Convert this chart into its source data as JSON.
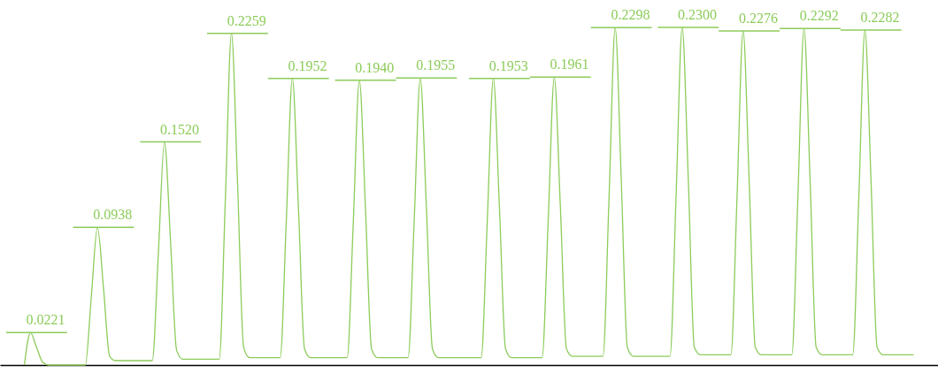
{
  "chart_data": {
    "type": "line",
    "categories": [
      null,
      null,
      null,
      null,
      null,
      null,
      null,
      null,
      null,
      null,
      null,
      null,
      null,
      null,
      null,
      null,
      null,
      null,
      null,
      null,
      null,
      null,
      null,
      null,
      null,
      null,
      null,
      null,
      null,
      null,
      null,
      null,
      null,
      null,
      null,
      null,
      null,
      null,
      null,
      null,
      null,
      null,
      null,
      null,
      null,
      null,
      null,
      null,
      null,
      null,
      null,
      null,
      null,
      null,
      null,
      null,
      null,
      null,
      null,
      null,
      null,
      null,
      null,
      null,
      null,
      null,
      null,
      null,
      null,
      null,
      null,
      null,
      null,
      null,
      null,
      null,
      null,
      null,
      null,
      null,
      null,
      null,
      null,
      null,
      null,
      null,
      null,
      null,
      null,
      null,
      null,
      null,
      null,
      null,
      null,
      null,
      null,
      null,
      null,
      null,
      null,
      null,
      null,
      null,
      null,
      null,
      null,
      null,
      null,
      null,
      null,
      null,
      null,
      null,
      null,
      null,
      null,
      null,
      null,
      null,
      null,
      null,
      null,
      null,
      null,
      null,
      null,
      null,
      null,
      null,
      null,
      null,
      null,
      null,
      null,
      null,
      null,
      null,
      null,
      null,
      null,
      null,
      null,
      null,
      null,
      null,
      null
    ],
    "series": [
      {
        "color": "#8ccc5a",
        "values": [
          0,
          0.0221,
          0.012,
          0.002,
          0,
          0,
          0,
          0,
          0,
          0,
          0,
          0.047,
          0.0938,
          0.052,
          0.006,
          0.003,
          0.003,
          0.003,
          0.003,
          0.003,
          0.003,
          0.003,
          0.076,
          0.152,
          0.084,
          0.01,
          0.004,
          0.004,
          0.004,
          0.004,
          0.004,
          0.004,
          0.004,
          0.113,
          0.2259,
          0.124,
          0.012,
          0.005,
          0.005,
          0.005,
          0.005,
          0.005,
          0.005,
          0.098,
          0.1952,
          0.107,
          0.011,
          0.005,
          0.005,
          0.005,
          0.005,
          0.005,
          0.005,
          0.005,
          0.097,
          0.194,
          0.107,
          0.011,
          0.005,
          0.005,
          0.005,
          0.005,
          0.005,
          0.005,
          0.098,
          0.1955,
          0.108,
          0.011,
          0.005,
          0.005,
          0.005,
          0.005,
          0.005,
          0.005,
          0.005,
          0.005,
          0.098,
          0.1953,
          0.107,
          0.011,
          0.005,
          0.005,
          0.005,
          0.005,
          0.005,
          0.005,
          0.098,
          0.1961,
          0.108,
          0.011,
          0.006,
          0.006,
          0.006,
          0.006,
          0.006,
          0.006,
          0.115,
          0.2298,
          0.126,
          0.012,
          0.006,
          0.006,
          0.006,
          0.006,
          0.006,
          0.006,
          0.006,
          0.115,
          0.23,
          0.127,
          0.012,
          0.007,
          0.007,
          0.007,
          0.007,
          0.007,
          0.007,
          0.114,
          0.2276,
          0.125,
          0.012,
          0.007,
          0.007,
          0.007,
          0.007,
          0.007,
          0.007,
          0.115,
          0.2292,
          0.126,
          0.012,
          0.007,
          0.007,
          0.007,
          0.007,
          0.007,
          0.007,
          0.114,
          0.2282,
          0.126,
          0.012,
          0.007,
          0.007,
          0.007,
          0.007,
          0.007,
          0.007
        ],
        "value_labels": [
          null,
          "0.0221",
          null,
          null,
          null,
          null,
          null,
          null,
          null,
          null,
          null,
          null,
          "0.0938",
          null,
          null,
          null,
          null,
          null,
          null,
          null,
          null,
          null,
          null,
          "0.1520",
          null,
          null,
          null,
          null,
          null,
          null,
          null,
          null,
          null,
          null,
          "0.2259",
          null,
          null,
          null,
          null,
          null,
          null,
          null,
          null,
          null,
          "0.1952",
          null,
          null,
          null,
          null,
          null,
          null,
          null,
          null,
          null,
          null,
          "0.1940",
          null,
          null,
          null,
          null,
          null,
          null,
          null,
          null,
          null,
          "0.1955",
          null,
          null,
          null,
          null,
          null,
          null,
          null,
          null,
          null,
          null,
          null,
          "0.1953",
          null,
          null,
          null,
          null,
          null,
          null,
          null,
          null,
          null,
          "0.1961",
          null,
          null,
          null,
          null,
          null,
          null,
          null,
          null,
          null,
          "0.2298",
          null,
          null,
          null,
          null,
          null,
          null,
          null,
          null,
          null,
          null,
          "0.2300",
          null,
          null,
          null,
          null,
          null,
          null,
          null,
          null,
          null,
          "0.2276",
          null,
          null,
          null,
          null,
          null,
          null,
          null,
          null,
          null,
          "0.2292",
          null,
          null,
          null,
          null,
          null,
          null,
          null,
          null,
          null,
          "0.2282",
          null,
          null,
          null,
          null,
          null,
          null,
          null,
          null
        ]
      }
    ]
  }
}
